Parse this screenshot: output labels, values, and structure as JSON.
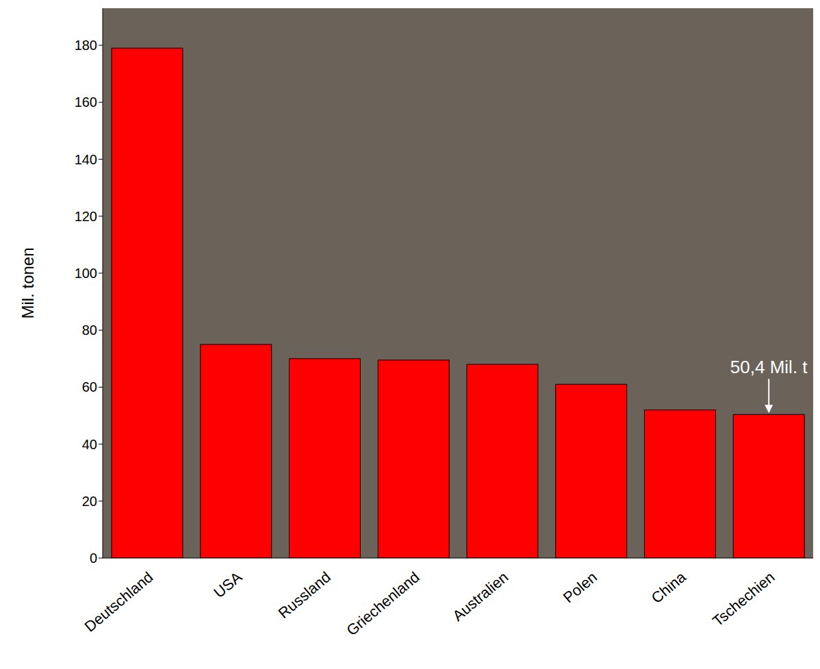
{
  "chart_data": {
    "type": "bar",
    "y_label": "Mil. tonen",
    "categories": [
      "Deutschland",
      "USA",
      "Russland",
      "Griechenland",
      "Australien",
      "Polen",
      "China",
      "Tschechien"
    ],
    "values": [
      179,
      75,
      70,
      69.5,
      68,
      61,
      52,
      50.4
    ],
    "color": "#ff0000",
    "ylim": [
      0,
      193
    ],
    "yticks": [
      0,
      20,
      40,
      60,
      80,
      100,
      120,
      140,
      160,
      180
    ],
    "grid": false,
    "annotation": {
      "text": "50,4 Mil. t",
      "category": "Tschechien"
    }
  }
}
